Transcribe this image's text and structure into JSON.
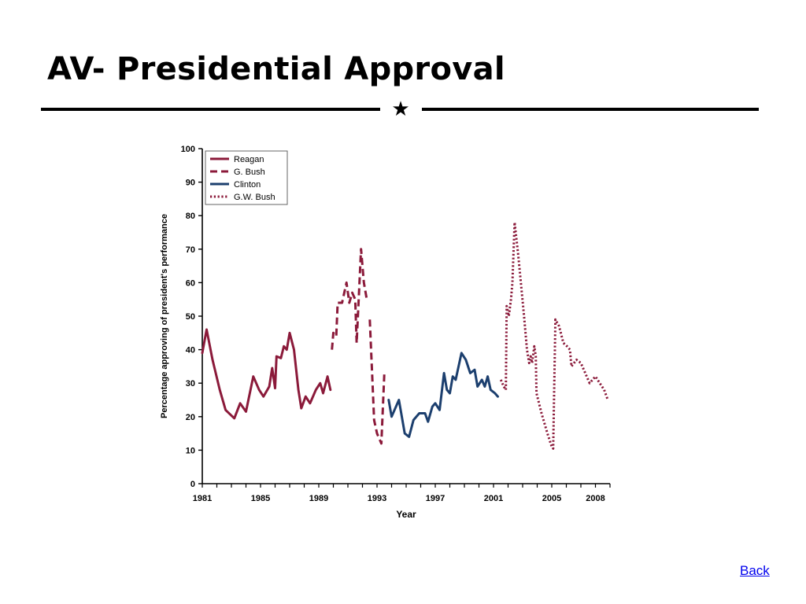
{
  "slide": {
    "title": "AV- Presidential Approval",
    "divider_icon": "star-icon",
    "back_label": "Back"
  },
  "colors": {
    "republican": "#8b1a3a",
    "democrat": "#1c3f6e",
    "axis": "#000000"
  },
  "chart_data": {
    "type": "line",
    "title": "",
    "xlabel": "Year",
    "ylabel": "Percentage approving of president's performance",
    "xlim": [
      1981,
      2009
    ],
    "ylim": [
      0,
      100
    ],
    "xticks": [
      1981,
      1985,
      1989,
      1993,
      1997,
      2001,
      2005,
      2008
    ],
    "yticks": [
      0,
      10,
      20,
      30,
      40,
      50,
      60,
      70,
      80,
      90,
      100
    ],
    "grid": false,
    "legend_position": "top-left",
    "series": [
      {
        "name": "Reagan",
        "style": "solid",
        "color": "#8b1a3a",
        "points": [
          [
            1981.0,
            39
          ],
          [
            1981.3,
            46
          ],
          [
            1981.7,
            37
          ],
          [
            1982.2,
            28
          ],
          [
            1982.6,
            22
          ],
          [
            1983.2,
            19.5
          ],
          [
            1983.6,
            24
          ],
          [
            1984.0,
            21.5
          ],
          [
            1984.5,
            32
          ],
          [
            1984.9,
            28
          ],
          [
            1985.2,
            26
          ],
          [
            1985.6,
            29
          ],
          [
            1985.8,
            34.5
          ],
          [
            1986.0,
            28.5
          ],
          [
            1986.1,
            38
          ],
          [
            1986.4,
            37.5
          ],
          [
            1986.6,
            41
          ],
          [
            1986.8,
            40
          ],
          [
            1987.0,
            45
          ],
          [
            1987.3,
            40
          ],
          [
            1987.6,
            28
          ],
          [
            1987.8,
            22.5
          ],
          [
            1988.1,
            26
          ],
          [
            1988.4,
            24
          ],
          [
            1988.8,
            28
          ],
          [
            1989.1,
            30
          ],
          [
            1989.3,
            27
          ],
          [
            1989.6,
            32
          ],
          [
            1989.8,
            28
          ]
        ]
      },
      {
        "name": "G. Bush",
        "style": "dashed",
        "color": "#8b1a3a",
        "points": [
          [
            1989.9,
            40
          ],
          [
            1990.0,
            45
          ],
          [
            1990.2,
            44
          ],
          [
            1990.3,
            54
          ],
          [
            1990.6,
            54
          ],
          [
            1990.9,
            60
          ],
          [
            1991.1,
            54
          ],
          [
            1991.3,
            57
          ],
          [
            1991.5,
            55
          ],
          [
            1991.6,
            42
          ],
          [
            1991.9,
            70
          ],
          [
            1992.1,
            60
          ],
          [
            1992.3,
            55
          ]
        ]
      },
      {
        "name": "G. Bush",
        "style": "dashed",
        "color": "#8b1a3a",
        "points": [
          [
            1992.5,
            49
          ],
          [
            1992.8,
            19
          ],
          [
            1993.0,
            15
          ],
          [
            1993.3,
            12
          ],
          [
            1993.5,
            33
          ]
        ]
      },
      {
        "name": "Clinton",
        "style": "solid",
        "color": "#1c3f6e",
        "points": [
          [
            1993.8,
            25
          ],
          [
            1994.0,
            20
          ],
          [
            1994.5,
            25
          ],
          [
            1994.9,
            15
          ],
          [
            1995.2,
            14
          ],
          [
            1995.5,
            19
          ],
          [
            1995.9,
            21
          ],
          [
            1996.3,
            21
          ],
          [
            1996.5,
            18.5
          ],
          [
            1996.8,
            23
          ],
          [
            1997.0,
            24
          ],
          [
            1997.3,
            22
          ],
          [
            1997.6,
            33
          ],
          [
            1997.8,
            28
          ],
          [
            1998.0,
            27
          ],
          [
            1998.2,
            32
          ],
          [
            1998.4,
            31
          ],
          [
            1998.6,
            35
          ],
          [
            1998.8,
            39
          ],
          [
            1999.1,
            37
          ],
          [
            1999.4,
            33
          ],
          [
            1999.7,
            34
          ],
          [
            1999.9,
            29
          ],
          [
            2000.2,
            31
          ],
          [
            2000.4,
            29
          ],
          [
            2000.6,
            32
          ],
          [
            2000.8,
            28
          ],
          [
            2001.1,
            27
          ],
          [
            2001.3,
            26
          ]
        ]
      },
      {
        "name": "G.W. Bush",
        "style": "dotted",
        "color": "#8b1a3a",
        "points": [
          [
            2001.5,
            31
          ],
          [
            2001.7,
            29
          ],
          [
            2001.85,
            28
          ],
          [
            2001.9,
            53
          ],
          [
            2002.05,
            50
          ],
          [
            2002.2,
            55
          ],
          [
            2002.3,
            60
          ],
          [
            2002.45,
            78
          ],
          [
            2002.7,
            68
          ],
          [
            2003.1,
            50
          ],
          [
            2003.3,
            40
          ],
          [
            2003.45,
            36
          ],
          [
            2003.55,
            38
          ],
          [
            2003.65,
            36
          ],
          [
            2003.8,
            41
          ],
          [
            2003.9,
            38
          ],
          [
            2003.95,
            27
          ],
          [
            2004.3,
            21
          ],
          [
            2004.7,
            15
          ],
          [
            2005.0,
            11
          ],
          [
            2005.1,
            10.5
          ],
          [
            2005.25,
            49
          ],
          [
            2005.5,
            47
          ],
          [
            2005.8,
            42
          ],
          [
            2006.05,
            41
          ],
          [
            2006.25,
            40
          ],
          [
            2006.35,
            35
          ],
          [
            2006.7,
            37
          ],
          [
            2007.0,
            36
          ],
          [
            2007.4,
            32
          ],
          [
            2007.6,
            30
          ],
          [
            2007.8,
            31
          ],
          [
            2008.0,
            32
          ],
          [
            2008.3,
            30
          ],
          [
            2008.6,
            28
          ],
          [
            2008.85,
            25
          ]
        ]
      }
    ],
    "legend": [
      {
        "label": "Reagan",
        "style": "solid",
        "color": "#8b1a3a"
      },
      {
        "label": "G. Bush",
        "style": "dashed",
        "color": "#8b1a3a"
      },
      {
        "label": "Clinton",
        "style": "solid",
        "color": "#1c3f6e"
      },
      {
        "label": "G.W. Bush",
        "style": "dotted",
        "color": "#8b1a3a"
      }
    ]
  }
}
